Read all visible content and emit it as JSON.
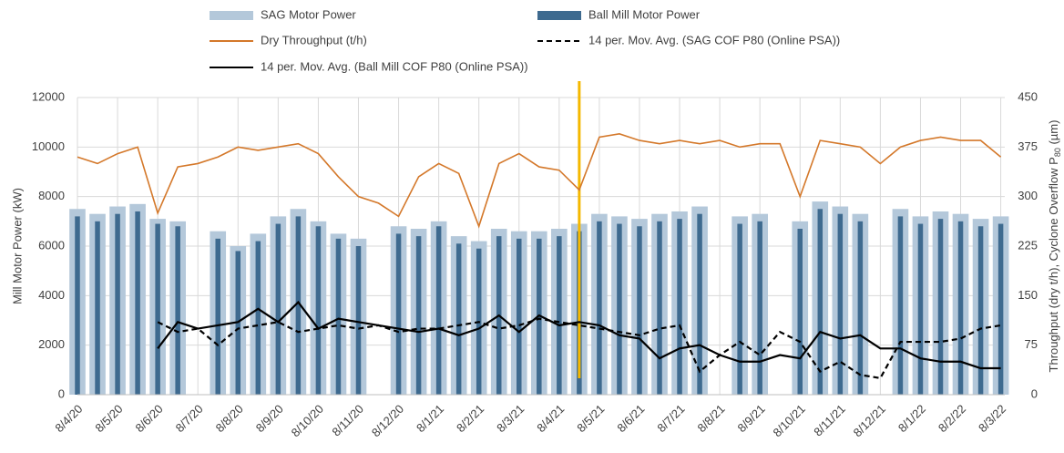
{
  "chart_data": {
    "type": "combo",
    "y_label": "Mill Motor Power (kW)",
    "y2_label": {
      "text": "Throughput (dry t/h), Cyclone Overflow P",
      "sub": "80",
      "end": " (µm)"
    },
    "x": [
      0,
      0.5,
      1,
      1.5,
      2,
      2.5,
      3,
      3.5,
      4,
      4.5,
      5,
      5.5,
      6,
      6.5,
      7,
      7.5,
      8,
      8.5,
      9,
      9.5,
      10,
      10.5,
      11,
      11.5,
      12,
      12.5,
      13,
      13.5,
      14,
      14.5,
      15,
      15.5,
      16,
      16.5,
      17,
      17.5,
      18,
      18.5,
      19,
      19.5,
      20,
      20.5,
      21,
      21.5,
      22,
      22.5,
      23
    ],
    "xlim": [
      0,
      23.1
    ],
    "xticks": [
      {
        "value": 0,
        "label": "8/4/20"
      },
      {
        "value": 1,
        "label": "8/5/20"
      },
      {
        "value": 2,
        "label": "8/6/20"
      },
      {
        "value": 3,
        "label": "8/7/20"
      },
      {
        "value": 4,
        "label": "8/8/20"
      },
      {
        "value": 5,
        "label": "8/9/20"
      },
      {
        "value": 6,
        "label": "8/10/20"
      },
      {
        "value": 7,
        "label": "8/11/20"
      },
      {
        "value": 8,
        "label": "8/12/20"
      },
      {
        "value": 9,
        "label": "8/1/21"
      },
      {
        "value": 10,
        "label": "8/2/21"
      },
      {
        "value": 11,
        "label": "8/3/21"
      },
      {
        "value": 12,
        "label": "8/4/21"
      },
      {
        "value": 13,
        "label": "8/5/21"
      },
      {
        "value": 14,
        "label": "8/6/21"
      },
      {
        "value": 15,
        "label": "8/7/21"
      },
      {
        "value": 16,
        "label": "8/8/21"
      },
      {
        "value": 17,
        "label": "8/9/21"
      },
      {
        "value": 18,
        "label": "8/10/21"
      },
      {
        "value": 19,
        "label": "8/11/21"
      },
      {
        "value": 20,
        "label": "8/12/21"
      },
      {
        "value": 21,
        "label": "8/1/22"
      },
      {
        "value": 22,
        "label": "8/2/22"
      },
      {
        "value": 23,
        "label": "8/3/22"
      }
    ],
    "ylim": [
      0,
      12000
    ],
    "yticks": [
      0,
      2000,
      4000,
      6000,
      8000,
      10000,
      12000
    ],
    "y2lim": [
      0,
      450
    ],
    "y2ticks": [
      0,
      75,
      150,
      225,
      300,
      375,
      450
    ],
    "grid": true,
    "marker": {
      "x": 12.5,
      "color": "#f5b800"
    },
    "series": [
      {
        "name": "SAG Motor Power",
        "kind": "bar",
        "color": "#b4c8da",
        "values": [
          7500,
          7300,
          7600,
          7700,
          7100,
          7000,
          null,
          6600,
          6000,
          6500,
          7200,
          7500,
          7000,
          6500,
          6300,
          null,
          6800,
          6700,
          7000,
          6400,
          6200,
          6700,
          6600,
          6600,
          6700,
          6900,
          7300,
          7200,
          7100,
          7300,
          7400,
          7600,
          null,
          7200,
          7300,
          null,
          7000,
          7800,
          7600,
          7300,
          null,
          7500,
          7200,
          7400,
          7300,
          7100,
          7200
        ]
      },
      {
        "name": "Ball Mill Motor Power",
        "kind": "bar",
        "color": "#3e6a8f",
        "values": [
          7200,
          7000,
          7300,
          7400,
          6900,
          6800,
          null,
          6300,
          5800,
          6200,
          6900,
          7200,
          6800,
          6300,
          6000,
          null,
          6500,
          6400,
          6800,
          6100,
          5900,
          6400,
          6300,
          6300,
          6400,
          6600,
          7000,
          6900,
          6800,
          7000,
          7100,
          7300,
          null,
          6900,
          7000,
          null,
          6700,
          7500,
          7300,
          7000,
          null,
          7200,
          6900,
          7100,
          7000,
          6800,
          6900
        ]
      },
      {
        "name": "Dry Throughput (t/h)",
        "kind": "line",
        "axis": "y2",
        "color": "#d4782a",
        "dash": false,
        "values": [
          360,
          350,
          365,
          375,
          275,
          345,
          350,
          360,
          375,
          370,
          375,
          380,
          365,
          330,
          300,
          290,
          270,
          330,
          350,
          335,
          255,
          350,
          365,
          345,
          340,
          310,
          390,
          395,
          385,
          380,
          385,
          380,
          385,
          375,
          380,
          380,
          300,
          385,
          380,
          375,
          350,
          375,
          385,
          390,
          385,
          385,
          360
        ]
      },
      {
        "name": "14 per. Mov. Avg. (SAG COF P80 (Online PSA))",
        "kind": "line",
        "axis": "y2",
        "color": "#000000",
        "dash": true,
        "values": [
          null,
          null,
          null,
          null,
          110,
          95,
          100,
          75,
          100,
          105,
          110,
          95,
          100,
          105,
          100,
          105,
          95,
          100,
          100,
          105,
          110,
          100,
          105,
          115,
          110,
          105,
          100,
          95,
          90,
          100,
          105,
          35,
          60,
          80,
          60,
          95,
          80,
          35,
          50,
          30,
          25,
          80,
          80,
          80,
          85,
          100,
          105
        ]
      },
      {
        "name": "14 per. Mov. Avg. (Ball Mill COF P80 (Online PSA))",
        "kind": "line",
        "axis": "y2",
        "color": "#000000",
        "dash": false,
        "values": [
          null,
          null,
          null,
          null,
          70,
          110,
          100,
          105,
          110,
          130,
          110,
          140,
          100,
          115,
          110,
          105,
          100,
          95,
          100,
          90,
          100,
          120,
          95,
          120,
          105,
          110,
          105,
          90,
          85,
          55,
          70,
          75,
          60,
          50,
          50,
          60,
          55,
          95,
          85,
          90,
          70,
          70,
          55,
          50,
          50,
          40,
          40
        ]
      }
    ]
  }
}
